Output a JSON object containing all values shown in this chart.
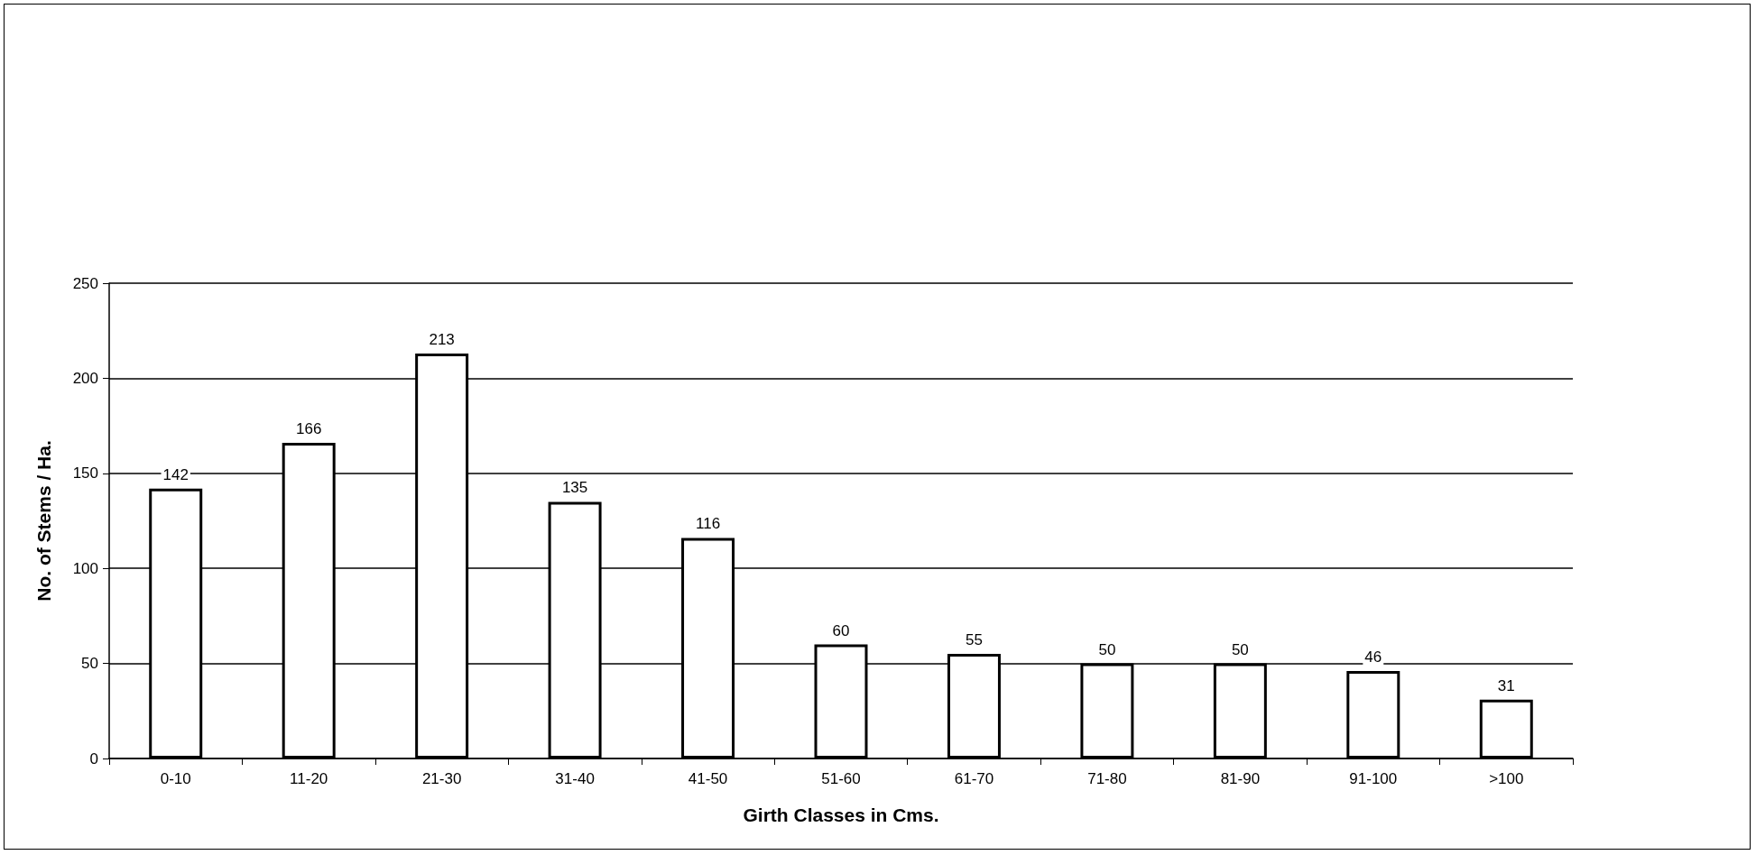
{
  "chart_data": {
    "type": "bar",
    "xlabel": "Girth Classes in Cms.",
    "ylabel": "No. of Stems / Ha.",
    "categories": [
      "0-10",
      "11-20",
      "21-30",
      "31-40",
      "41-50",
      "51-60",
      "61-70",
      "71-80",
      "81-90",
      "91-100",
      ">100"
    ],
    "values": [
      142,
      166,
      213,
      135,
      116,
      60,
      55,
      50,
      50,
      46,
      31
    ],
    "color": "#ffffff",
    "ylim": [
      0,
      250
    ],
    "yticks": [
      0,
      50,
      100,
      150,
      200,
      250
    ],
    "grid": "y",
    "data_labels": true
  }
}
